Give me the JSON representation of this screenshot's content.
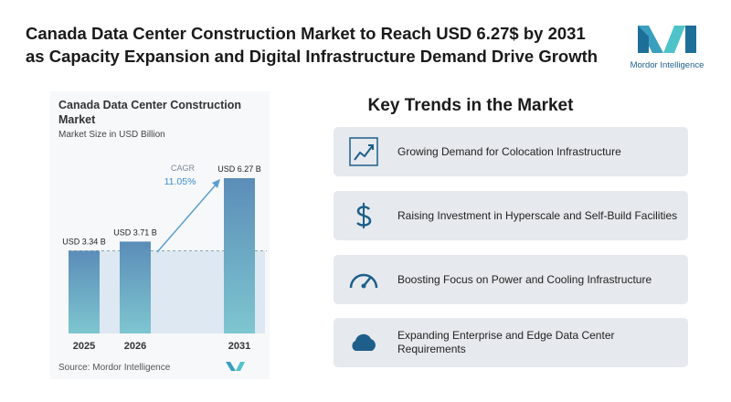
{
  "header": {
    "title_lines": [
      "Canada Data Center Construction Market to Reach USD 6.27$ by 2031",
      "as Capacity Expansion and Digital Infrastructure Demand Drive Growth"
    ],
    "logo": "Mordor Intelligence"
  },
  "chart_data": {
    "type": "bar",
    "title": "Canada Data Center Construction Market",
    "subtitle": "Market Size in USD Billion",
    "categories": [
      "2025",
      "2026",
      "2031"
    ],
    "values": [
      3.34,
      3.71,
      6.27
    ],
    "value_labels": [
      "USD 3.34 B",
      "USD 3.71 B",
      "USD 6.27 B"
    ],
    "colors": [
      "#5b8db8",
      "#7ec6d0"
    ],
    "annotation": {
      "label": "CAGR",
      "value": "11.05%"
    },
    "source": "Source: Mordor Intelligence"
  },
  "key_trends": {
    "title": "Key Trends in the Market",
    "items": [
      "Growing Demand for Colocation Infrastructure",
      "Raising Investment in Hyperscale and Self-Build Facilities",
      "Boosting Focus on Power and Cooling Infrastructure",
      "Expanding Enterprise and Edge Data Center Requirements"
    ]
  }
}
